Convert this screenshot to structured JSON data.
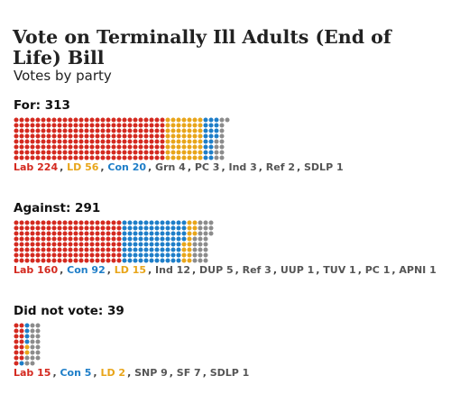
{
  "title": "Vote on Terminally Ill Adults (End of Life) Bill",
  "subtitle": "Votes by party",
  "colors": {
    "lab": "#d42a20",
    "ld": "#e8a51a",
    "con": "#1e7ec8",
    "other": "#8c8c8c"
  },
  "chart_data": {
    "type": "dot-matrix",
    "title": "Vote on Terminally Ill Adults (End of Life) Bill",
    "subtitle": "Votes by party",
    "groups": [
      {
        "heading": "For: 313",
        "total": 313,
        "parties": [
          {
            "label": "Lab",
            "value": 224,
            "color_key": "lab"
          },
          {
            "label": "LD",
            "value": 56,
            "color_key": "ld"
          },
          {
            "label": "Con",
            "value": 20,
            "color_key": "con"
          },
          {
            "label": "Grn",
            "value": 4,
            "color_key": "other"
          },
          {
            "label": "PC",
            "value": 3,
            "color_key": "other"
          },
          {
            "label": "Ind",
            "value": 3,
            "color_key": "other"
          },
          {
            "label": "Ref",
            "value": 2,
            "color_key": "other"
          },
          {
            "label": "SDLP",
            "value": 1,
            "color_key": "other"
          }
        ]
      },
      {
        "heading": "Against: 291",
        "total": 291,
        "parties": [
          {
            "label": "Lab",
            "value": 160,
            "color_key": "lab"
          },
          {
            "label": "Con",
            "value": 92,
            "color_key": "con"
          },
          {
            "label": "LD",
            "value": 15,
            "color_key": "ld"
          },
          {
            "label": "Ind",
            "value": 12,
            "color_key": "other"
          },
          {
            "label": "DUP",
            "value": 5,
            "color_key": "other"
          },
          {
            "label": "Ref",
            "value": 3,
            "color_key": "other"
          },
          {
            "label": "UUP",
            "value": 1,
            "color_key": "other"
          },
          {
            "label": "TUV",
            "value": 1,
            "color_key": "other"
          },
          {
            "label": "PC",
            "value": 1,
            "color_key": "other"
          },
          {
            "label": "APNI",
            "value": 1,
            "color_key": "other"
          }
        ]
      },
      {
        "heading": "Did not vote: 39",
        "total": 39,
        "parties": [
          {
            "label": "Lab",
            "value": 15,
            "color_key": "lab"
          },
          {
            "label": "Con",
            "value": 5,
            "color_key": "con"
          },
          {
            "label": "LD",
            "value": 2,
            "color_key": "ld"
          },
          {
            "label": "SNP",
            "value": 9,
            "color_key": "other"
          },
          {
            "label": "SF",
            "value": 7,
            "color_key": "other"
          },
          {
            "label": "SDLP",
            "value": 1,
            "color_key": "other"
          }
        ]
      }
    ]
  }
}
